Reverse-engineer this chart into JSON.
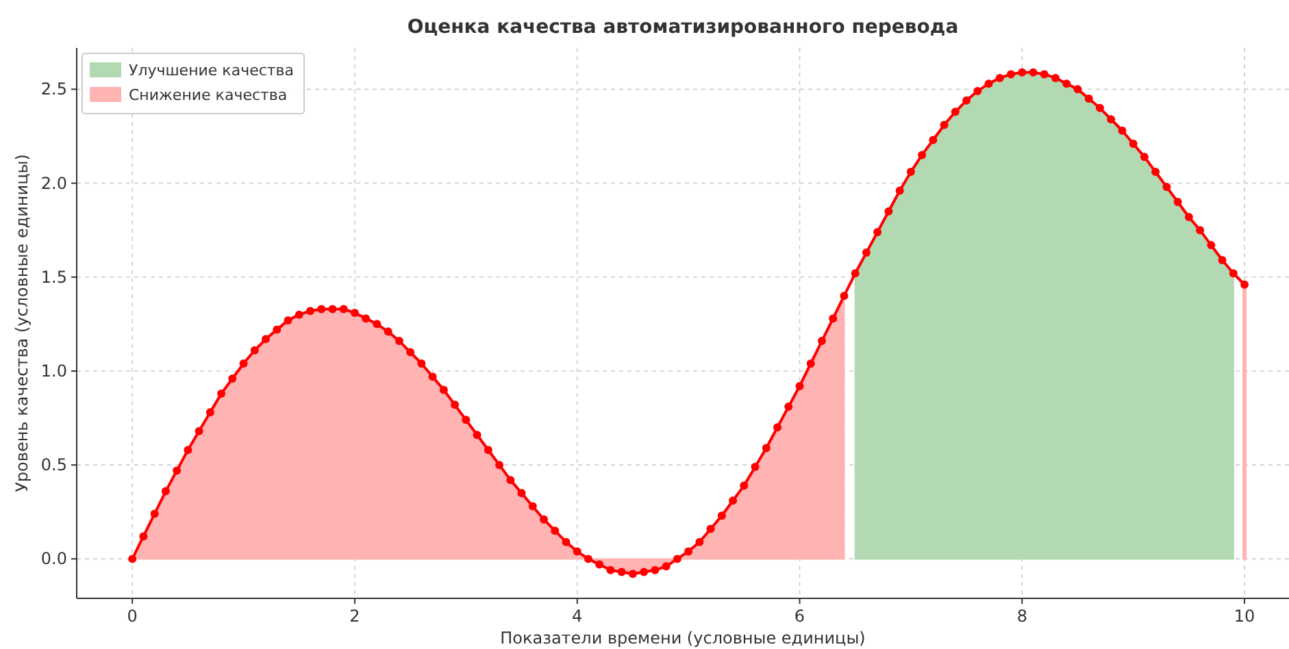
{
  "chart_data": {
    "type": "line",
    "title": "Оценка качества автоматизированного перевода",
    "xlabel": "Показатели времени (условные единицы)",
    "ylabel": "Уровень качества (условные единицы)",
    "x": [
      0,
      0.1,
      0.2,
      0.3,
      0.4,
      0.5,
      0.6,
      0.7,
      0.8,
      0.9,
      1,
      1.1,
      1.2,
      1.3,
      1.4,
      1.5,
      1.6,
      1.7,
      1.8,
      1.9,
      2,
      2.1,
      2.2,
      2.3,
      2.4,
      2.5,
      2.6,
      2.7,
      2.8,
      2.9,
      3,
      3.1,
      3.2,
      3.3,
      3.4,
      3.5,
      3.6,
      3.7,
      3.8,
      3.9,
      4,
      4.1,
      4.2,
      4.3,
      4.4,
      4.5,
      4.6,
      4.7,
      4.8,
      4.9,
      5,
      5.1,
      5.2,
      5.3,
      5.4,
      5.5,
      5.6,
      5.7,
      5.8,
      5.9,
      6,
      6.1,
      6.2,
      6.3,
      6.4,
      6.5,
      6.6,
      6.7,
      6.8,
      6.9,
      7,
      7.1,
      7.2,
      7.3,
      7.4,
      7.5,
      7.6,
      7.7,
      7.8,
      7.9,
      8,
      8.1,
      8.2,
      8.3,
      8.4,
      8.5,
      8.6,
      8.7,
      8.8,
      8.9,
      9,
      9.1,
      9.2,
      9.3,
      9.4,
      9.5,
      9.6,
      9.7,
      9.8,
      9.9,
      10
    ],
    "series": [
      {
        "name": "Улучшение качества",
        "type": "area",
        "color": "#b3d9b3",
        "values": [
          null,
          null,
          null,
          null,
          null,
          null,
          null,
          null,
          null,
          null,
          null,
          null,
          null,
          null,
          null,
          null,
          null,
          null,
          null,
          null,
          null,
          null,
          null,
          null,
          null,
          null,
          null,
          null,
          null,
          null,
          null,
          null,
          null,
          null,
          null,
          null,
          null,
          null,
          null,
          null,
          null,
          null,
          null,
          null,
          null,
          null,
          null,
          null,
          null,
          null,
          null,
          null,
          null,
          null,
          null,
          null,
          null,
          null,
          null,
          null,
          null,
          null,
          null,
          null,
          null,
          1.52,
          1.63,
          1.74,
          1.85,
          1.96,
          2.06,
          2.15,
          2.23,
          2.31,
          2.38,
          2.44,
          2.49,
          2.53,
          2.56,
          2.58,
          2.59,
          2.59,
          2.58,
          2.56,
          2.53,
          2.5,
          2.45,
          2.4,
          2.34,
          2.28,
          2.21,
          2.14,
          2.06,
          1.98,
          1.9,
          1.82,
          1.75,
          1.67,
          1.59,
          1.52,
          null
        ]
      },
      {
        "name": "Снижение качества",
        "type": "area",
        "color": "#ffb3b3",
        "values": [
          0,
          0.12,
          0.24,
          0.36,
          0.47,
          0.58,
          0.68,
          0.78,
          0.88,
          0.96,
          1.04,
          1.11,
          1.17,
          1.22,
          1.27,
          1.3,
          1.32,
          1.33,
          1.33,
          1.33,
          1.31,
          1.28,
          1.25,
          1.21,
          1.16,
          1.1,
          1.04,
          0.97,
          0.9,
          0.82,
          0.74,
          0.66,
          0.58,
          0.5,
          0.42,
          0.35,
          0.28,
          0.21,
          0.15,
          0.09,
          0.04,
          0.0,
          -0.03,
          -0.06,
          -0.07,
          -0.08,
          -0.07,
          -0.06,
          -0.04,
          0.0,
          0.04,
          0.09,
          0.16,
          0.23,
          0.31,
          0.39,
          0.49,
          0.59,
          0.7,
          0.81,
          0.92,
          1.04,
          1.16,
          1.28,
          1.4,
          null,
          null,
          null,
          null,
          null,
          null,
          null,
          null,
          null,
          null,
          null,
          null,
          null,
          null,
          null,
          null,
          null,
          null,
          null,
          null,
          null,
          null,
          null,
          null,
          null,
          null,
          null,
          null,
          null,
          null,
          null,
          null,
          null,
          null,
          null,
          1.46
        ]
      },
      {
        "type": "line",
        "color": "#ff0000",
        "marker": "circle",
        "line_style": "solid",
        "values": [
          0,
          0.12,
          0.24,
          0.36,
          0.47,
          0.58,
          0.68,
          0.78,
          0.88,
          0.96,
          1.04,
          1.11,
          1.17,
          1.22,
          1.27,
          1.3,
          1.32,
          1.33,
          1.33,
          1.33,
          1.31,
          1.28,
          1.25,
          1.21,
          1.16,
          1.1,
          1.04,
          0.97,
          0.9,
          0.82,
          0.74,
          0.66,
          0.58,
          0.5,
          0.42,
          0.35,
          0.28,
          0.21,
          0.15,
          0.09,
          0.04,
          0.0,
          -0.03,
          -0.06,
          -0.07,
          -0.08,
          -0.07,
          -0.06,
          -0.04,
          0.0,
          0.04,
          0.09,
          0.16,
          0.23,
          0.31,
          0.39,
          0.49,
          0.59,
          0.7,
          0.81,
          0.92,
          1.04,
          1.16,
          1.28,
          1.4,
          1.52,
          1.63,
          1.74,
          1.85,
          1.96,
          2.06,
          2.15,
          2.23,
          2.31,
          2.38,
          2.44,
          2.49,
          2.53,
          2.56,
          2.58,
          2.59,
          2.59,
          2.58,
          2.56,
          2.53,
          2.5,
          2.45,
          2.4,
          2.34,
          2.28,
          2.21,
          2.14,
          2.06,
          1.98,
          1.9,
          1.82,
          1.75,
          1.67,
          1.59,
          1.52,
          1.46
        ]
      }
    ],
    "xlim": [
      -0.5,
      10.4
    ],
    "xticks": [
      0,
      2,
      4,
      6,
      8,
      10
    ],
    "ylim": [
      -0.21,
      2.72
    ],
    "yticks": [
      {
        "value": 0,
        "label": "0.0"
      },
      {
        "value": 0.5,
        "label": "0.5"
      },
      {
        "value": 1,
        "label": "1.0"
      },
      {
        "value": 1.5,
        "label": "1.5"
      },
      {
        "value": 2,
        "label": "2.0"
      },
      {
        "value": 2.5,
        "label": "2.5"
      }
    ],
    "grid": true,
    "legend": "top left"
  }
}
